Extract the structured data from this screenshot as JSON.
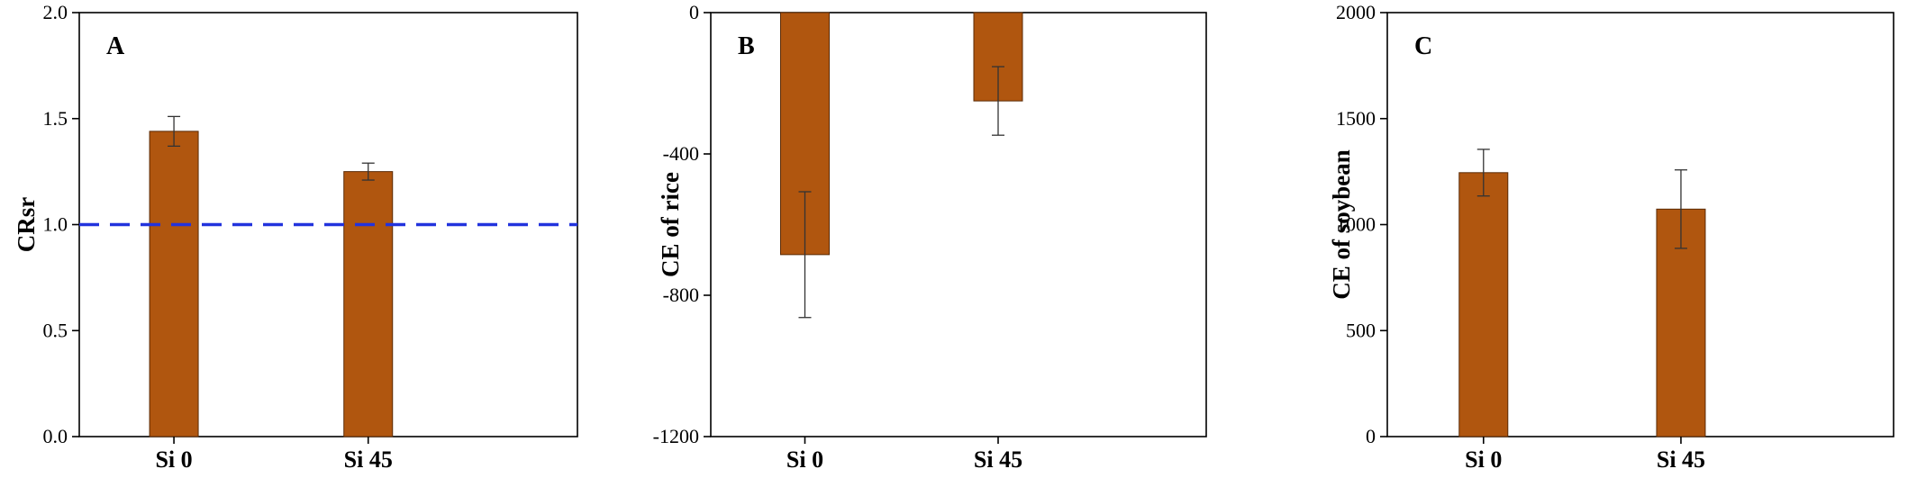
{
  "chart_data": [
    {
      "type": "bar",
      "panel_label": "A",
      "ylabel": "CRsr",
      "categories": [
        "Si 0",
        "Si 45"
      ],
      "values": [
        1.44,
        1.25
      ],
      "errors": [
        0.07,
        0.04
      ],
      "ylim": [
        0,
        2.0
      ],
      "yticks": [
        0.0,
        0.5,
        1.0,
        1.5,
        2.0
      ],
      "ytick_labels": [
        "0.0",
        "0.5",
        "1.0",
        "1.5",
        "2.0"
      ],
      "reference_line": {
        "y": 1.0,
        "style": "dashed",
        "color": "#2233dd"
      },
      "bar_color": "#b0560f",
      "grid": false
    },
    {
      "type": "bar",
      "panel_label": "B",
      "ylabel": "CE of rice",
      "categories": [
        "Si 0",
        "Si 45"
      ],
      "values": [
        -685,
        -250
      ],
      "errors": [
        178,
        97
      ],
      "ylim": [
        -1200,
        0
      ],
      "yticks": [
        0,
        -400,
        -800,
        -1200
      ],
      "ytick_labels": [
        "0",
        "-400",
        "-800",
        "-1200"
      ],
      "bar_color": "#b0560f",
      "grid": false
    },
    {
      "type": "bar",
      "panel_label": "C",
      "ylabel": "CE of soybean",
      "categories": [
        "Si 0",
        "Si 45"
      ],
      "values": [
        1245,
        1073
      ],
      "errors": [
        110,
        185
      ],
      "ylim": [
        0,
        2000
      ],
      "yticks": [
        0,
        500,
        1000,
        1500,
        2000
      ],
      "ytick_labels": [
        "0",
        "500",
        "1000",
        "1500",
        "2000"
      ],
      "bar_color": "#b0560f",
      "grid": false
    }
  ]
}
